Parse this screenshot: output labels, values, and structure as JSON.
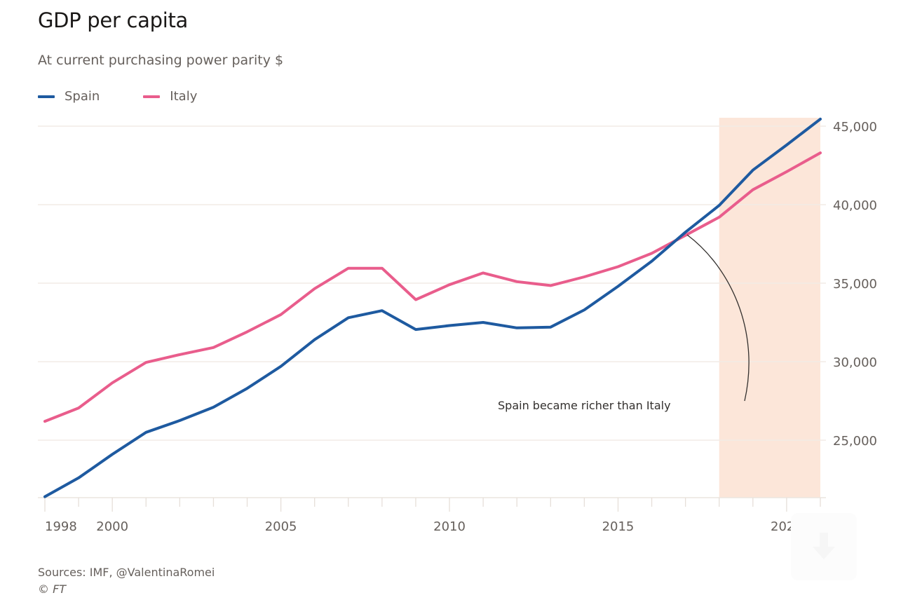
{
  "header": {
    "title": "GDP per capita",
    "subtitle": "At current purchasing power parity $"
  },
  "legend": [
    {
      "label": "Spain",
      "color": "#1e5aa0"
    },
    {
      "label": "Italy",
      "color": "#e95d8c"
    }
  ],
  "footer": {
    "sources": "Sources: IMF, @ValentinaRomei",
    "copyright": "© FT"
  },
  "download_button": {
    "icon": "download-arrow-icon"
  },
  "chart_data": {
    "type": "line",
    "title": "GDP per capita",
    "subtitle": "At current purchasing power parity $",
    "xlabel": "",
    "ylabel": "",
    "x": [
      1998,
      1999,
      2000,
      2001,
      2002,
      2003,
      2004,
      2005,
      2006,
      2007,
      2008,
      2009,
      2010,
      2011,
      2012,
      2013,
      2014,
      2015,
      2016,
      2017,
      2018,
      2019,
      2020,
      2021
    ],
    "series": [
      {
        "name": "Spain",
        "color": "#1e5aa0",
        "values": [
          21400,
          22600,
          24100,
          25500,
          26250,
          27100,
          28300,
          29700,
          31400,
          32800,
          33250,
          32050,
          32300,
          32500,
          32150,
          32200,
          33300,
          34800,
          36400,
          38250,
          39950,
          42200,
          43800,
          45450
        ]
      },
      {
        "name": "Italy",
        "color": "#e95d8c",
        "values": [
          26200,
          27050,
          28650,
          29950,
          30450,
          30900,
          31900,
          33000,
          34650,
          35950,
          35950,
          33950,
          34900,
          35650,
          35100,
          34850,
          35400,
          36050,
          36900,
          38050,
          39200,
          40950,
          42100,
          43300
        ]
      }
    ],
    "x_ticks": [
      1998,
      2000,
      2005,
      2010,
      2015,
      2020
    ],
    "x_tick_labels": [
      "1998",
      "2000",
      "2005",
      "2010",
      "2015",
      "2020"
    ],
    "xlim": [
      1998,
      2021
    ],
    "y_ticks": [
      25000,
      30000,
      35000,
      40000,
      45000
    ],
    "y_tick_labels": [
      "25,000",
      "30,000",
      "35,000",
      "40,000",
      "45,000"
    ],
    "ylim": [
      21300,
      45400
    ],
    "y_axis_side": "right",
    "grid": true,
    "legend_position": "top-left",
    "shaded_region": {
      "x_start": 2018,
      "x_end": 2021,
      "color": "#fce6d9",
      "meaning": "forecast"
    },
    "annotations": [
      {
        "text": "Spain became richer than Italy",
        "points_to": {
          "x": 2017,
          "y": 38200
        }
      }
    ]
  }
}
